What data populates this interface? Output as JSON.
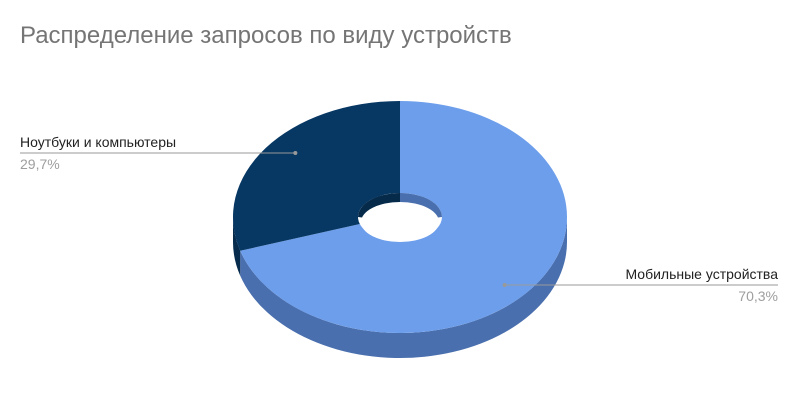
{
  "chart_data": {
    "type": "pie",
    "title": "Распределение запросов по виду устройств",
    "donut": true,
    "style": "3d",
    "slices": [
      {
        "label": "Мобильные устройства",
        "value": 70.3,
        "value_label": "70,3%",
        "color": "#6d9eeb",
        "side_color": "#4a6fae"
      },
      {
        "label": "Ноутбуки и компьютеры",
        "value": 29.7,
        "value_label": "29,7%",
        "color": "#073763",
        "side_color": "#062b4d"
      }
    ],
    "legend": "labels-with-leader-lines"
  }
}
